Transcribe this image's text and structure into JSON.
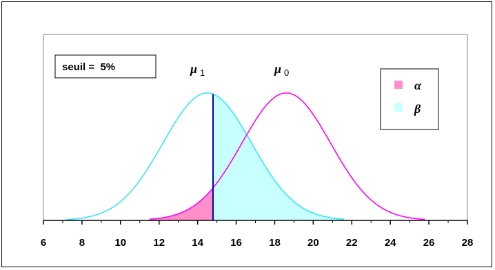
{
  "threshold_box": {
    "label": "seuil =  5%"
  },
  "colors": {
    "alpha_fill": "#ff8fc8",
    "beta_fill": "#c8ffff",
    "h1_curve": "#33e6ff",
    "h0_curve": "#ff00ff",
    "threshold_line": "#0000cc",
    "plot_border": "#808080"
  },
  "chart_data": {
    "type": "area",
    "title": "",
    "xlabel": "",
    "ylabel": "",
    "xlim": [
      6,
      28
    ],
    "ylim": [
      0,
      1.0
    ],
    "x_ticks": [
      "6",
      "8",
      "10",
      "12",
      "14",
      "16",
      "18",
      "20",
      "22",
      "24",
      "26",
      "28"
    ],
    "grid": false,
    "legend_position": "top-right",
    "legend": [
      {
        "name": "α",
        "color": "#ff8fc8"
      },
      {
        "name": "β",
        "color": "#c8ffff"
      }
    ],
    "distributions": [
      {
        "label_symbol": "μ",
        "label_sub": "1",
        "mean": 14.5,
        "sd": 2.3,
        "x_range": [
          7.2,
          21.6
        ],
        "color": "#33e6ff"
      },
      {
        "label_symbol": "μ",
        "label_sub": "0",
        "mean": 18.6,
        "sd": 2.3,
        "x_range": [
          11.5,
          25.8
        ],
        "color": "#ff00ff"
      }
    ],
    "threshold": 14.8
  }
}
